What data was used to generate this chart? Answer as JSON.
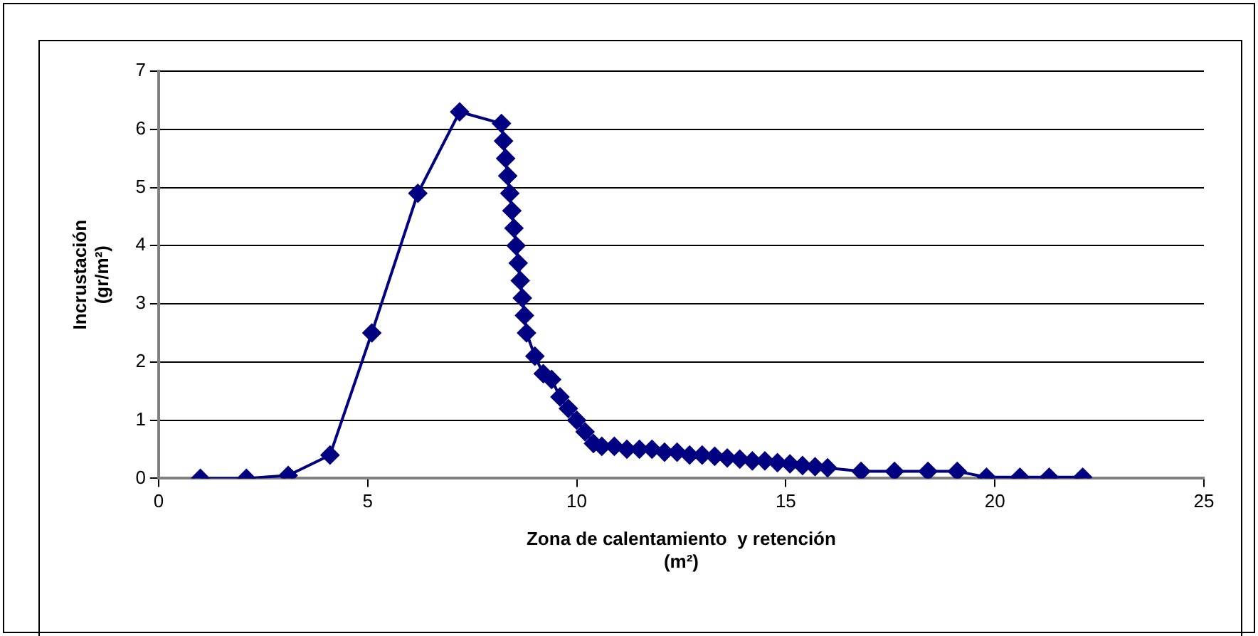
{
  "chart_data": {
    "type": "line",
    "xlabel": "Zona de calentamiento  y retención\n(m²)",
    "ylabel": "Incrustación\n(gr/m²)",
    "xlim": [
      0,
      25
    ],
    "xticks": [
      0,
      5,
      10,
      15,
      20,
      25
    ],
    "ylim": [
      0,
      7
    ],
    "yticks": [
      0,
      1,
      2,
      3,
      4,
      5,
      6,
      7
    ],
    "grid": "y",
    "legend": false,
    "marker": "diamond",
    "line_style": "solid",
    "series": [
      {
        "color": "#000080",
        "x": [
          1,
          2.1,
          3.1,
          4.1,
          5.1,
          6.2,
          7.2,
          8.2,
          8.25,
          8.3,
          8.35,
          8.4,
          8.45,
          8.5,
          8.55,
          8.6,
          8.65,
          8.7,
          8.75,
          8.8,
          9.0,
          9.2,
          9.4,
          9.6,
          9.8,
          10.0,
          10.2,
          10.4,
          10.6,
          10.9,
          11.2,
          11.5,
          11.8,
          12.1,
          12.4,
          12.7,
          13.0,
          13.3,
          13.6,
          13.9,
          14.2,
          14.5,
          14.8,
          15.1,
          15.4,
          15.7,
          16.0,
          16.8,
          17.6,
          18.4,
          19.1,
          19.8,
          20.6,
          21.3,
          22.1
        ],
        "values": [
          0,
          0,
          0.05,
          0.4,
          2.5,
          4.9,
          6.3,
          6.1,
          5.8,
          5.5,
          5.2,
          4.9,
          4.6,
          4.3,
          4.0,
          3.7,
          3.4,
          3.1,
          2.8,
          2.5,
          2.1,
          1.8,
          1.7,
          1.4,
          1.2,
          1.0,
          0.8,
          0.6,
          0.55,
          0.55,
          0.5,
          0.5,
          0.5,
          0.45,
          0.45,
          0.4,
          0.4,
          0.38,
          0.35,
          0.33,
          0.3,
          0.3,
          0.27,
          0.25,
          0.22,
          0.2,
          0.18,
          0.12,
          0.12,
          0.12,
          0.12,
          0.02,
          0.02,
          0.02,
          0.02
        ]
      }
    ]
  }
}
